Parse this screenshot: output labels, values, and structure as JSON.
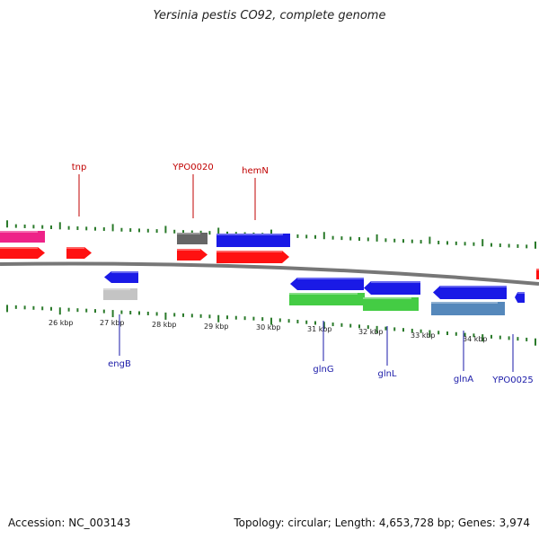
{
  "title": "Yersinia pestis CO92, complete genome",
  "footer": {
    "accession": "Accession: NC_003143",
    "topology": "Topology: circular; Length: 4,653,728 bp; Genes: 3,974"
  },
  "colors": {
    "background": "#ffffff",
    "backbone": "#777777",
    "tick": "#2a7a2a",
    "label_top": "#c00000",
    "label_bottom": "#1a1aa8",
    "red": "#ff1111",
    "blue": "#1a1ae6",
    "pink": "#ee2288",
    "green": "#44cc44",
    "steel": "#5588bb",
    "gray": "#666666",
    "lightgray": "#c4c4c4"
  },
  "ruler": {
    "labels": [
      "26 kbp",
      "27 kbp",
      "28 kbp",
      "29 kbp",
      "30 kbp",
      "31 kbp",
      "32 kbp",
      "33 kbp",
      "34 kbp"
    ]
  },
  "labels_top": [
    "tnp",
    "YPO0020",
    "hemN"
  ],
  "labels_bottom": [
    "engB",
    "glnG",
    "glnL",
    "glnA",
    "YPO0025"
  ],
  "feature_colors": [
    "pink",
    "red",
    "red",
    "gray",
    "red",
    "blue",
    "red",
    "blue",
    "lightgray",
    "green",
    "green",
    "blue",
    "blue",
    "steel",
    "blue",
    "blue",
    "red"
  ]
}
